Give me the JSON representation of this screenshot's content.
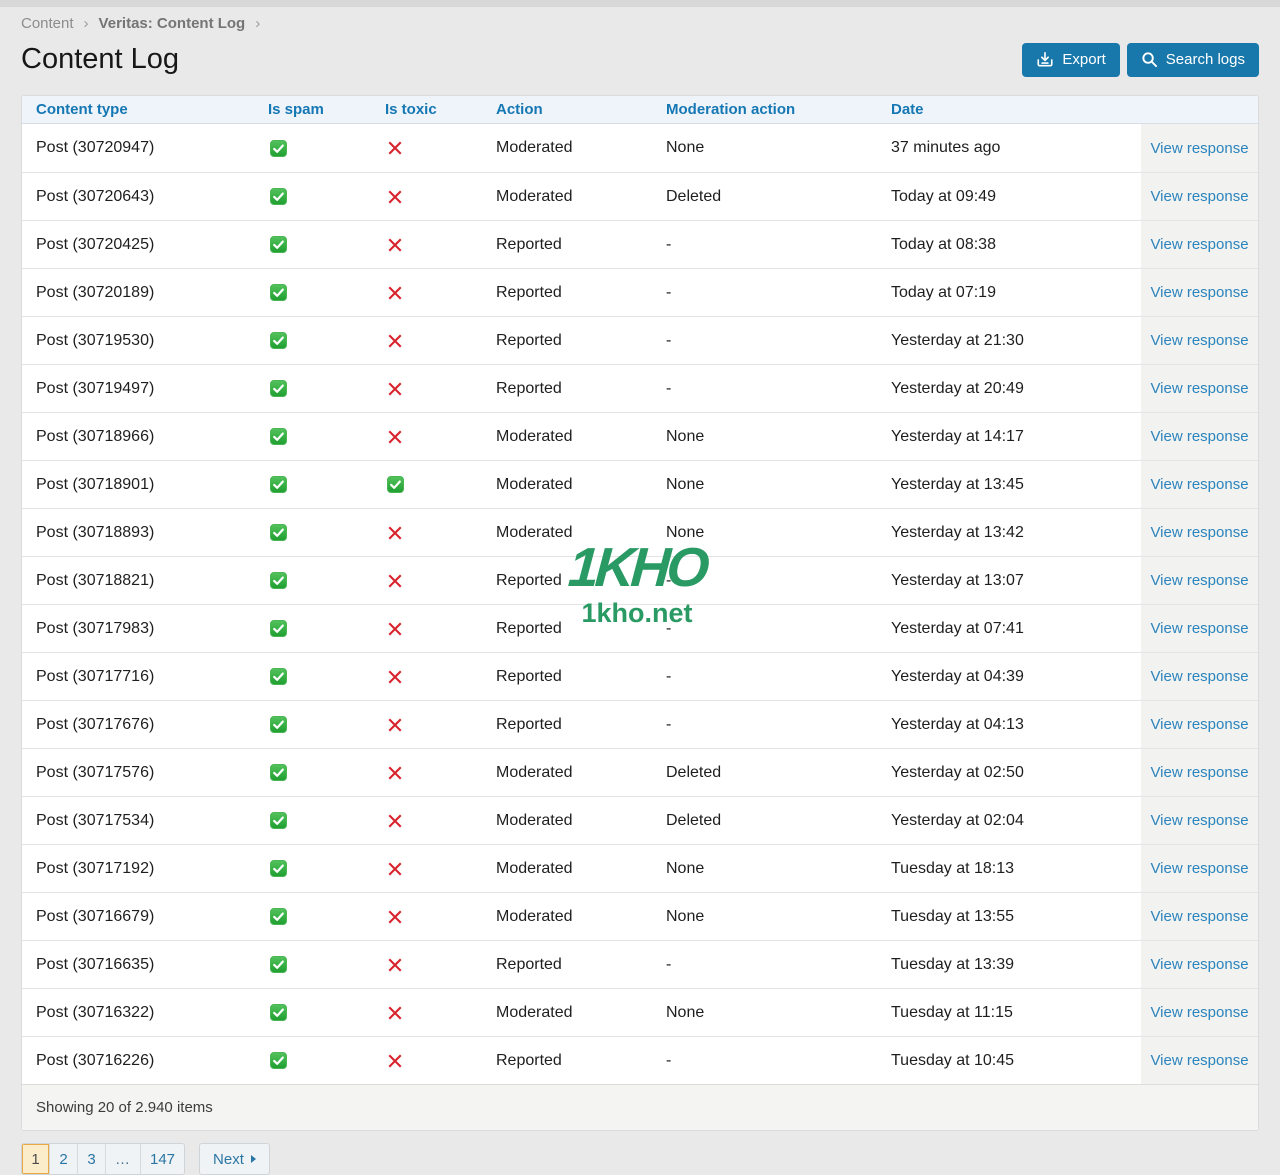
{
  "breadcrumb": {
    "items": [
      {
        "label": "Content"
      },
      {
        "label": "Veritas: Content Log"
      }
    ]
  },
  "header": {
    "title": "Content Log",
    "export_label": "Export",
    "search_label": "Search logs"
  },
  "table": {
    "columns": [
      "Content type",
      "Is spam",
      "Is toxic",
      "Action",
      "Moderation action",
      "Date"
    ],
    "view_response_label": "View response",
    "rows": [
      {
        "content": "Post (30720947)",
        "is_spam": true,
        "is_toxic": false,
        "action": "Moderated",
        "moderation_action": "None",
        "date": "37 minutes ago"
      },
      {
        "content": "Post (30720643)",
        "is_spam": true,
        "is_toxic": false,
        "action": "Moderated",
        "moderation_action": "Deleted",
        "date": "Today at 09:49"
      },
      {
        "content": "Post (30720425)",
        "is_spam": true,
        "is_toxic": false,
        "action": "Reported",
        "moderation_action": "-",
        "date": "Today at 08:38"
      },
      {
        "content": "Post (30720189)",
        "is_spam": true,
        "is_toxic": false,
        "action": "Reported",
        "moderation_action": "-",
        "date": "Today at 07:19"
      },
      {
        "content": "Post (30719530)",
        "is_spam": true,
        "is_toxic": false,
        "action": "Reported",
        "moderation_action": "-",
        "date": "Yesterday at 21:30"
      },
      {
        "content": "Post (30719497)",
        "is_spam": true,
        "is_toxic": false,
        "action": "Reported",
        "moderation_action": "-",
        "date": "Yesterday at 20:49"
      },
      {
        "content": "Post (30718966)",
        "is_spam": true,
        "is_toxic": false,
        "action": "Moderated",
        "moderation_action": "None",
        "date": "Yesterday at 14:17"
      },
      {
        "content": "Post (30718901)",
        "is_spam": true,
        "is_toxic": true,
        "action": "Moderated",
        "moderation_action": "None",
        "date": "Yesterday at 13:45"
      },
      {
        "content": "Post (30718893)",
        "is_spam": true,
        "is_toxic": false,
        "action": "Moderated",
        "moderation_action": "None",
        "date": "Yesterday at 13:42"
      },
      {
        "content": "Post (30718821)",
        "is_spam": true,
        "is_toxic": false,
        "action": "Reported",
        "moderation_action": "-",
        "date": "Yesterday at 13:07"
      },
      {
        "content": "Post (30717983)",
        "is_spam": true,
        "is_toxic": false,
        "action": "Reported",
        "moderation_action": "-",
        "date": "Yesterday at 07:41"
      },
      {
        "content": "Post (30717716)",
        "is_spam": true,
        "is_toxic": false,
        "action": "Reported",
        "moderation_action": "-",
        "date": "Yesterday at 04:39"
      },
      {
        "content": "Post (30717676)",
        "is_spam": true,
        "is_toxic": false,
        "action": "Reported",
        "moderation_action": "-",
        "date": "Yesterday at 04:13"
      },
      {
        "content": "Post (30717576)",
        "is_spam": true,
        "is_toxic": false,
        "action": "Moderated",
        "moderation_action": "Deleted",
        "date": "Yesterday at 02:50"
      },
      {
        "content": "Post (30717534)",
        "is_spam": true,
        "is_toxic": false,
        "action": "Moderated",
        "moderation_action": "Deleted",
        "date": "Yesterday at 02:04"
      },
      {
        "content": "Post (30717192)",
        "is_spam": true,
        "is_toxic": false,
        "action": "Moderated",
        "moderation_action": "None",
        "date": "Tuesday at 18:13"
      },
      {
        "content": "Post (30716679)",
        "is_spam": true,
        "is_toxic": false,
        "action": "Moderated",
        "moderation_action": "None",
        "date": "Tuesday at 13:55"
      },
      {
        "content": "Post (30716635)",
        "is_spam": true,
        "is_toxic": false,
        "action": "Reported",
        "moderation_action": "-",
        "date": "Tuesday at 13:39"
      },
      {
        "content": "Post (30716322)",
        "is_spam": true,
        "is_toxic": false,
        "action": "Moderated",
        "moderation_action": "None",
        "date": "Tuesday at 11:15"
      },
      {
        "content": "Post (30716226)",
        "is_spam": true,
        "is_toxic": false,
        "action": "Reported",
        "moderation_action": "-",
        "date": "Tuesday at 10:45"
      }
    ]
  },
  "footer": {
    "summary": "Showing 20 of 2.940 items"
  },
  "pagination": {
    "pages": [
      "1",
      "2",
      "3",
      "…",
      "147"
    ],
    "active": "1",
    "next_label": "Next"
  },
  "watermark": {
    "title": "1KHO",
    "subtitle": "1kho.net"
  },
  "colors": {
    "accent": "#1878ab",
    "header_blue": "#1577b4",
    "link_blue": "#2b84bd",
    "check_green": "#25a435",
    "cross_red": "#d6252c",
    "watermark_green": "#2a9a64",
    "active_page_bg": "#fcedca"
  }
}
